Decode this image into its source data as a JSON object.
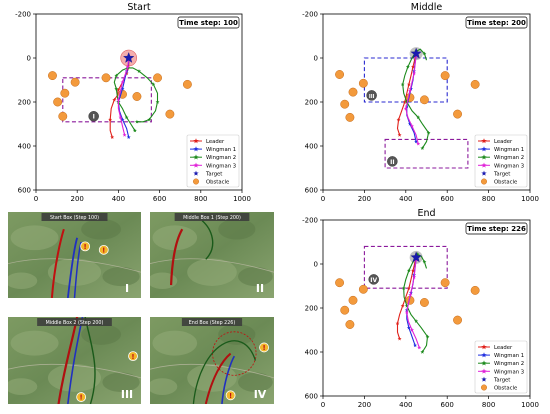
{
  "figure": {
    "legend_entries": [
      {
        "label": "Leader",
        "color": "#e0211b",
        "marker": "star"
      },
      {
        "label": "Wingman 1",
        "color": "#1f2ee0",
        "marker": "star"
      },
      {
        "label": "Wingman 2",
        "color": "#1c8a1c",
        "marker": "star"
      },
      {
        "label": "Wingman 3",
        "color": "#e020d8",
        "marker": "star"
      },
      {
        "label": "Target",
        "color": "#1a1ab0",
        "marker": "star"
      },
      {
        "label": "Obstacle",
        "color": "#f39a3c",
        "marker": "circle"
      }
    ],
    "colors": {
      "leader": "#e0211b",
      "wingman1": "#1f2ee0",
      "wingman2": "#1c8a1c",
      "wingman3": "#e020d8",
      "target": "#1a1ab0",
      "obstacle": "#f39a3c",
      "box_purple": "#8b1a9c",
      "box_blue": "#2a2ad0"
    }
  },
  "photo_panels": [
    {
      "header": "Start Box (Step 100)",
      "roman": "I"
    },
    {
      "header": "Middle Box 1 (Step 200)",
      "roman": "II"
    },
    {
      "header": "Middle Box 2 (Step 200)",
      "roman": "III"
    },
    {
      "header": "End Box (Step 226)",
      "roman": "IV"
    }
  ],
  "chart_data": [
    {
      "type": "scatter",
      "title": "Start",
      "time_step_label": "Time step: 100",
      "xlim": [
        0,
        1000
      ],
      "ylim": [
        600,
        -200
      ],
      "xticks": [
        0,
        200,
        400,
        600,
        800,
        1000
      ],
      "yticks": [
        -200,
        0,
        200,
        400,
        600
      ],
      "legend_position": "bottom-right",
      "target": [
        450,
        0
      ],
      "target_highlight": true,
      "obstacles": [
        [
          80,
          80
        ],
        [
          140,
          160
        ],
        [
          105,
          200
        ],
        [
          130,
          265
        ],
        [
          190,
          110
        ],
        [
          340,
          90
        ],
        [
          420,
          165
        ],
        [
          490,
          175
        ],
        [
          590,
          90
        ],
        [
          735,
          120
        ],
        [
          650,
          255
        ]
      ],
      "boxes": [
        {
          "x0": 130,
          "x1": 560,
          "y0": 90,
          "y1": 290,
          "style": "purple-dashed",
          "marker": "I",
          "marker_at": [
            280,
            265
          ]
        }
      ],
      "series": [
        {
          "name": "Leader",
          "points": [
            [
              370,
              360
            ],
            [
              360,
              330
            ],
            [
              360,
              280
            ],
            [
              365,
              230
            ],
            [
              380,
              190
            ],
            [
              395,
              170
            ],
            [
              400,
              145
            ],
            [
              420,
              110
            ],
            [
              440,
              70
            ],
            [
              450,
              40
            ],
            [
              450,
              0
            ]
          ]
        },
        {
          "name": "Wingman 1",
          "points": [
            [
              450,
              360
            ],
            [
              440,
              320
            ],
            [
              420,
              280
            ],
            [
              405,
              240
            ],
            [
              400,
              200
            ],
            [
              410,
              170
            ],
            [
              420,
              140
            ],
            [
              430,
              100
            ],
            [
              440,
              60
            ],
            [
              450,
              20
            ],
            [
              450,
              0
            ]
          ]
        },
        {
          "name": "Wingman 2",
          "points": [
            [
              480,
              330
            ],
            [
              460,
              300
            ],
            [
              440,
              270
            ],
            [
              420,
              230
            ],
            [
              400,
              200
            ],
            [
              395,
              175
            ],
            [
              390,
              140
            ],
            [
              380,
              110
            ],
            [
              390,
              80
            ],
            [
              420,
              55
            ],
            [
              445,
              45
            ],
            [
              470,
              45
            ],
            [
              500,
              60
            ],
            [
              540,
              90
            ],
            [
              570,
              120
            ],
            [
              590,
              160
            ],
            [
              590,
              200
            ],
            [
              580,
              240
            ],
            [
              550,
              280
            ],
            [
              520,
              290
            ],
            [
              490,
              290
            ]
          ]
        },
        {
          "name": "Wingman 3",
          "points": [
            [
              430,
              350
            ],
            [
              420,
              310
            ],
            [
              410,
              270
            ],
            [
              400,
              230
            ],
            [
              400,
              190
            ],
            [
              410,
              150
            ],
            [
              420,
              110
            ],
            [
              435,
              70
            ],
            [
              445,
              40
            ],
            [
              450,
              5
            ]
          ]
        }
      ]
    },
    {
      "type": "scatter",
      "title": "Middle",
      "time_step_label": "Time step: 200",
      "xlim": [
        0,
        1000
      ],
      "ylim": [
        600,
        -200
      ],
      "xticks": [
        0,
        200,
        400,
        600,
        800,
        1000
      ],
      "yticks": [
        -200,
        0,
        200,
        400,
        600
      ],
      "legend_position": "bottom-right",
      "target": [
        450,
        -20
      ],
      "obstacles": [
        [
          80,
          75
        ],
        [
          145,
          155
        ],
        [
          105,
          210
        ],
        [
          130,
          270
        ],
        [
          195,
          115
        ],
        [
          420,
          180
        ],
        [
          490,
          190
        ],
        [
          590,
          80
        ],
        [
          735,
          120
        ],
        [
          650,
          255
        ]
      ],
      "boxes": [
        {
          "x0": 200,
          "x1": 600,
          "y0": 0,
          "y1": 200,
          "style": "blue-dashed",
          "marker": "III",
          "marker_at": [
            235,
            170
          ]
        },
        {
          "x0": 300,
          "x1": 700,
          "y0": 370,
          "y1": 500,
          "style": "purple-dashed",
          "marker": "II",
          "marker_at": [
            335,
            470
          ]
        }
      ],
      "series": [
        {
          "name": "Leader",
          "points": [
            [
              370,
              350
            ],
            [
              360,
              320
            ],
            [
              365,
              280
            ],
            [
              380,
              240
            ],
            [
              395,
              200
            ],
            [
              405,
              160
            ],
            [
              415,
              120
            ],
            [
              425,
              80
            ],
            [
              435,
              40
            ],
            [
              445,
              0
            ],
            [
              450,
              -20
            ]
          ]
        },
        {
          "name": "Wingman 1",
          "points": [
            [
              450,
              380
            ],
            [
              440,
              340
            ],
            [
              420,
              300
            ],
            [
              405,
              260
            ],
            [
              405,
              220
            ],
            [
              415,
              180
            ],
            [
              425,
              140
            ],
            [
              435,
              100
            ],
            [
              440,
              60
            ],
            [
              445,
              20
            ],
            [
              450,
              -15
            ]
          ]
        },
        {
          "name": "Wingman 2",
          "points": [
            [
              480,
              410
            ],
            [
              500,
              380
            ],
            [
              510,
              340
            ],
            [
              480,
              300
            ],
            [
              460,
              270
            ],
            [
              430,
              240
            ],
            [
              405,
              200
            ],
            [
              390,
              160
            ],
            [
              385,
              120
            ],
            [
              395,
              80
            ],
            [
              410,
              40
            ],
            [
              430,
              0
            ],
            [
              450,
              -30
            ],
            [
              470,
              -40
            ],
            [
              490,
              -20
            ],
            [
              500,
              10
            ]
          ]
        },
        {
          "name": "Wingman 3",
          "points": [
            [
              460,
              390
            ],
            [
              450,
              350
            ],
            [
              430,
              310
            ],
            [
              410,
              270
            ],
            [
              400,
              230
            ],
            [
              410,
              190
            ],
            [
              420,
              150
            ],
            [
              430,
              110
            ],
            [
              440,
              70
            ],
            [
              445,
              30
            ],
            [
              450,
              -10
            ]
          ]
        }
      ]
    },
    {
      "type": "scatter",
      "title": "End",
      "time_step_label": "Time step: 226",
      "xlim": [
        0,
        1000
      ],
      "ylim": [
        600,
        -200
      ],
      "xticks": [
        0,
        200,
        400,
        600,
        800,
        1000
      ],
      "yticks": [
        -200,
        0,
        200,
        400,
        600
      ],
      "legend_position": "bottom-right",
      "target": [
        450,
        -30
      ],
      "obstacles": [
        [
          80,
          85
        ],
        [
          145,
          165
        ],
        [
          105,
          210
        ],
        [
          130,
          275
        ],
        [
          195,
          115
        ],
        [
          420,
          165
        ],
        [
          490,
          175
        ],
        [
          590,
          85
        ],
        [
          735,
          120
        ],
        [
          650,
          255
        ]
      ],
      "boxes": [
        {
          "x0": 200,
          "x1": 600,
          "y0": -80,
          "y1": 110,
          "style": "purple-dashed",
          "marker": "IV",
          "marker_at": [
            245,
            70
          ]
        }
      ],
      "series": [
        {
          "name": "Leader",
          "points": [
            [
              370,
              340
            ],
            [
              360,
              310
            ],
            [
              360,
              270
            ],
            [
              370,
              230
            ],
            [
              385,
              190
            ],
            [
              400,
              150
            ],
            [
              415,
              110
            ],
            [
              425,
              70
            ],
            [
              435,
              30
            ],
            [
              445,
              -10
            ],
            [
              450,
              -30
            ]
          ]
        },
        {
          "name": "Wingman 1",
          "points": [
            [
              445,
              370
            ],
            [
              430,
              330
            ],
            [
              415,
              290
            ],
            [
              405,
              250
            ],
            [
              405,
              210
            ],
            [
              415,
              170
            ],
            [
              425,
              130
            ],
            [
              435,
              90
            ],
            [
              440,
              50
            ],
            [
              445,
              10
            ],
            [
              450,
              -25
            ]
          ]
        },
        {
          "name": "Wingman 2",
          "points": [
            [
              480,
              400
            ],
            [
              500,
              370
            ],
            [
              505,
              330
            ],
            [
              475,
              290
            ],
            [
              450,
              260
            ],
            [
              425,
              230
            ],
            [
              405,
              190
            ],
            [
              392,
              150
            ],
            [
              390,
              110
            ],
            [
              400,
              70
            ],
            [
              415,
              30
            ],
            [
              435,
              -10
            ],
            [
              455,
              -45
            ],
            [
              475,
              -35
            ],
            [
              490,
              -10
            ],
            [
              500,
              20
            ]
          ]
        },
        {
          "name": "Wingman 3",
          "points": [
            [
              465,
              380
            ],
            [
              450,
              340
            ],
            [
              430,
              300
            ],
            [
              412,
              260
            ],
            [
              405,
              220
            ],
            [
              412,
              180
            ],
            [
              422,
              140
            ],
            [
              432,
              100
            ],
            [
              440,
              60
            ],
            [
              445,
              20
            ],
            [
              450,
              -20
            ]
          ]
        }
      ]
    }
  ]
}
